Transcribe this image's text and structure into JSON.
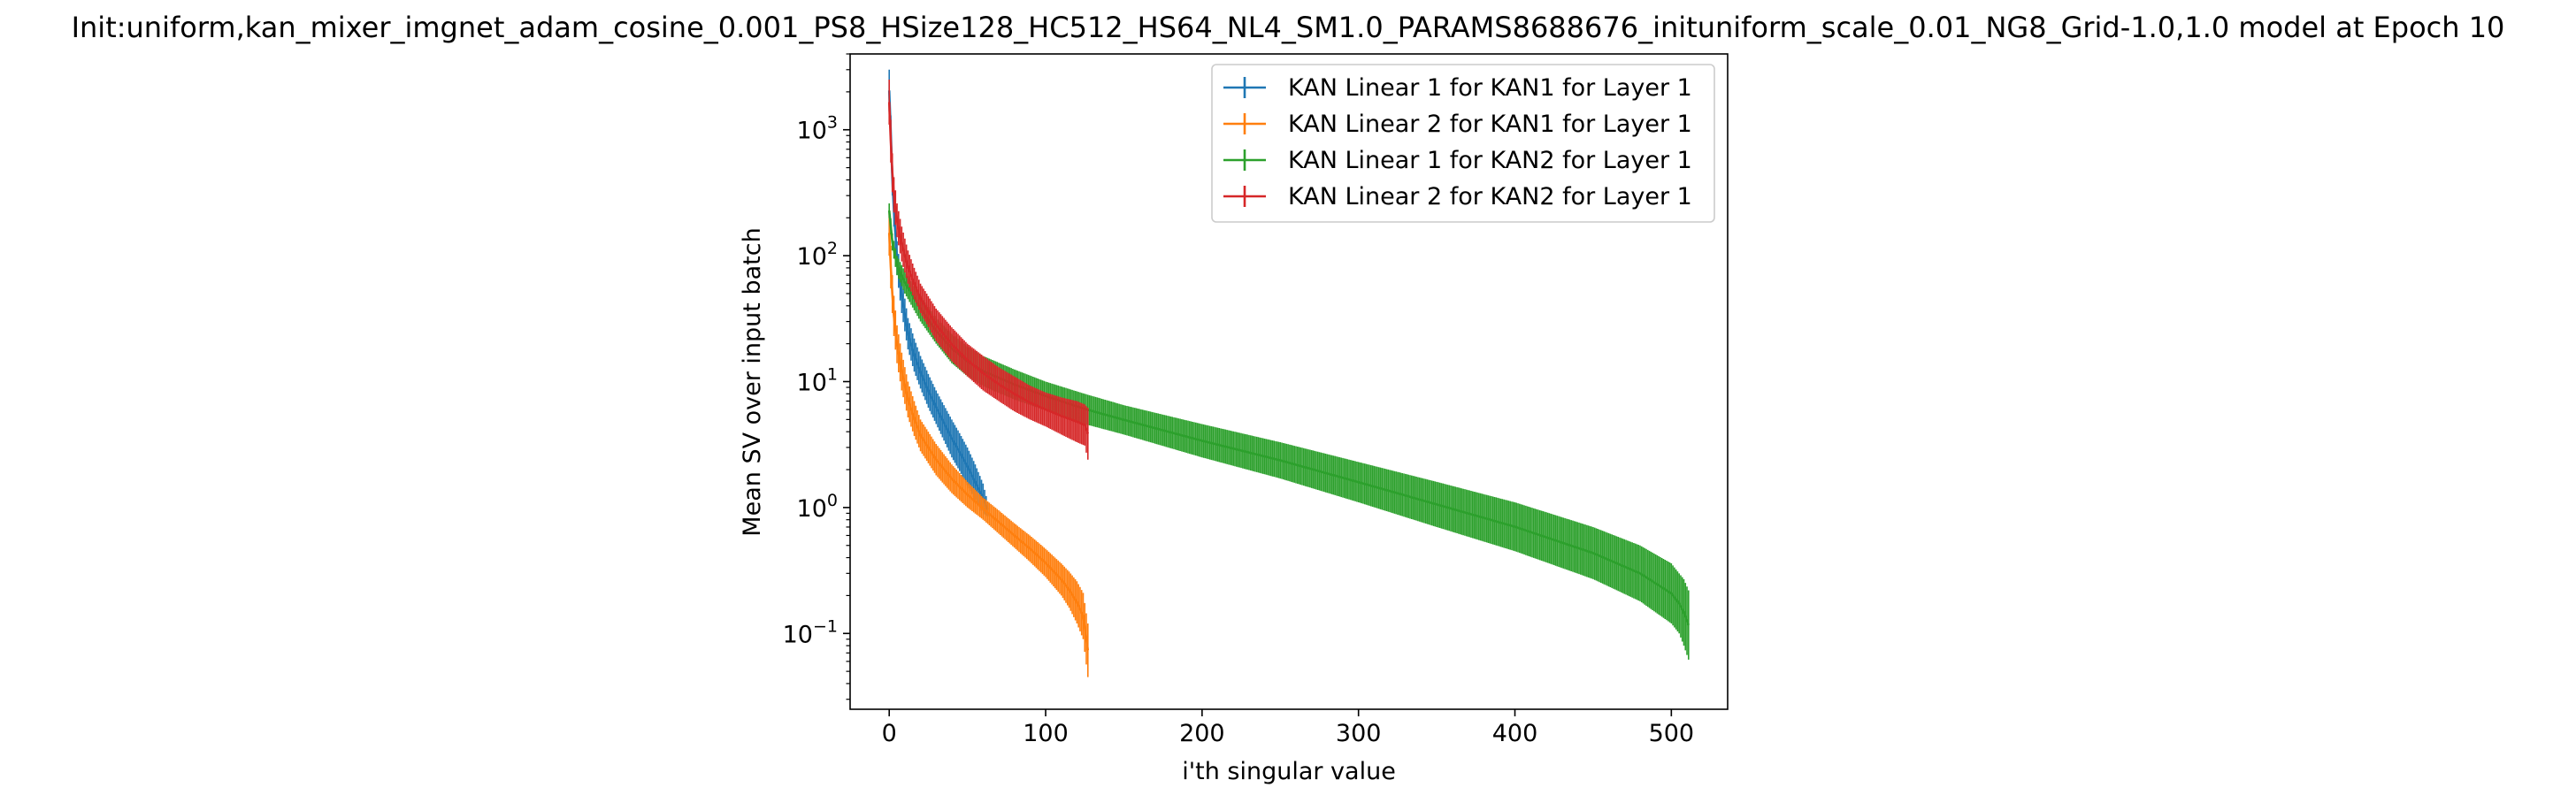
{
  "chart_data": {
    "type": "line",
    "title": "Init:uniform,kan_mixer_imgnet_adam_cosine_0.001_PS8_HSize128_HC512_HS64_NL4_SM1.0_PARAMS8688676_inituniform_scale_0.01_NG8_Grid-1.0,1.0 model at Epoch 10",
    "xlabel": "i'th singular value",
    "ylabel": "Mean SV over input batch",
    "xlim": [
      -25,
      536
    ],
    "ylim": [
      0.025,
      4000
    ],
    "yscale": "log",
    "grid": false,
    "legend_position": "top-right",
    "x_ticks": [
      {
        "value": 0,
        "label": "0"
      },
      {
        "value": 100,
        "label": "100"
      },
      {
        "value": 200,
        "label": "200"
      },
      {
        "value": 300,
        "label": "300"
      },
      {
        "value": 400,
        "label": "400"
      },
      {
        "value": 500,
        "label": "500"
      }
    ],
    "y_ticks": [
      {
        "value": 0.1,
        "base": "10",
        "exp": "−1"
      },
      {
        "value": 1,
        "base": "10",
        "exp": "0"
      },
      {
        "value": 10,
        "base": "10",
        "exp": "1"
      },
      {
        "value": 100,
        "base": "10",
        "exp": "2"
      },
      {
        "value": 1000,
        "base": "10",
        "exp": "3"
      }
    ],
    "series": [
      {
        "name": "KAN Linear 1 for KAN1 for Layer 1",
        "color": "#1f77b4",
        "x": [
          0,
          1,
          2,
          3,
          5,
          8,
          12,
          16,
          20,
          25,
          30,
          35,
          40,
          45,
          50,
          55,
          60,
          63
        ],
        "y_upper": [
          3000,
          1300,
          560,
          300,
          130,
          65,
          32,
          22,
          16,
          11.5,
          8.5,
          6.5,
          5.0,
          3.9,
          3.0,
          2.2,
          1.55,
          1.1
        ],
        "y_lower": [
          1400,
          700,
          300,
          170,
          70,
          35,
          18,
          12,
          8.8,
          6.2,
          4.6,
          3.4,
          2.5,
          1.95,
          1.5,
          1.15,
          0.9,
          0.85
        ]
      },
      {
        "name": "KAN Linear 2 for KAN1 for Layer 1",
        "color": "#ff7f0e",
        "x": [
          0,
          1,
          2,
          3,
          5,
          8,
          12,
          16,
          20,
          30,
          40,
          50,
          60,
          70,
          80,
          90,
          100,
          110,
          115,
          120,
          124,
          127
        ],
        "y_upper": [
          230,
          120,
          70,
          48,
          28,
          17,
          10,
          7,
          5.0,
          3.2,
          2.2,
          1.6,
          1.2,
          0.95,
          0.75,
          0.6,
          0.47,
          0.36,
          0.31,
          0.26,
          0.21,
          0.12
        ],
        "y_lower": [
          100,
          55,
          35,
          23,
          14,
          8.5,
          5.2,
          3.7,
          2.8,
          1.8,
          1.3,
          1.0,
          0.8,
          0.62,
          0.48,
          0.37,
          0.28,
          0.2,
          0.16,
          0.12,
          0.09,
          0.045
        ]
      },
      {
        "name": "KAN Linear 1 for KAN2 for Layer 1",
        "color": "#2ca02c",
        "x": [
          0,
          2,
          5,
          10,
          20,
          30,
          40,
          50,
          60,
          80,
          100,
          125,
          150,
          200,
          250,
          300,
          350,
          400,
          450,
          480,
          500,
          505,
          508,
          511
        ],
        "y_upper": [
          260,
          150,
          100,
          75,
          48,
          32,
          24,
          19,
          16,
          12.5,
          10,
          8,
          6.5,
          4.6,
          3.3,
          2.3,
          1.6,
          1.1,
          0.7,
          0.5,
          0.36,
          0.3,
          0.27,
          0.22
        ],
        "y_lower": [
          200,
          110,
          70,
          50,
          30,
          20,
          14,
          11,
          9.2,
          7.2,
          5.9,
          4.6,
          3.8,
          2.5,
          1.7,
          1.1,
          0.7,
          0.45,
          0.27,
          0.18,
          0.12,
          0.1,
          0.08,
          0.062
        ]
      },
      {
        "name": "KAN Linear 2 for KAN2 for Layer 1",
        "color": "#d62728",
        "x": [
          0,
          1,
          2,
          3,
          5,
          8,
          12,
          16,
          20,
          30,
          40,
          50,
          60,
          70,
          80,
          90,
          100,
          110,
          120,
          125,
          127
        ],
        "y_upper": [
          2500,
          1200,
          650,
          420,
          260,
          170,
          110,
          80,
          60,
          38,
          27,
          20,
          16,
          13,
          11,
          9.3,
          8.2,
          7.5,
          7.0,
          6.6,
          6.2
        ],
        "y_lower": [
          1100,
          550,
          320,
          220,
          140,
          90,
          60,
          45,
          35,
          21,
          14.5,
          11,
          8.5,
          7,
          5.8,
          5.0,
          4.4,
          3.8,
          3.3,
          3.1,
          2.4
        ]
      }
    ]
  }
}
